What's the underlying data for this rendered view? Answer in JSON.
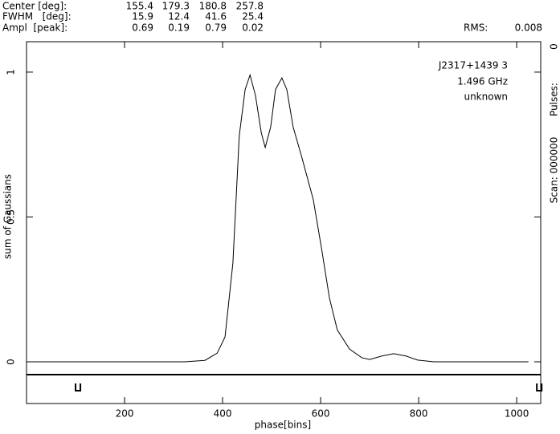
{
  "chart_data": {
    "type": "line",
    "fit_table": {
      "rows": [
        {
          "label": "Center [deg]:",
          "values": [
            155.4,
            179.3,
            180.8,
            257.8
          ]
        },
        {
          "label": "FWHM   [deg]:",
          "values": [
            15.9,
            12.4,
            41.6,
            25.4
          ]
        },
        {
          "label": "Ampl  [peak]:",
          "values": [
            0.69,
            0.19,
            0.79,
            0.02
          ]
        }
      ]
    },
    "rms_label": "RMS:",
    "rms_value": 0.008,
    "annotations": [
      "J2317+1439 3",
      "1.496 GHz",
      "unknown"
    ],
    "side_labels": [
      "Scan: 000000",
      "Pulses:",
      "0"
    ],
    "xlabel": "phase[bins]",
    "ylabel": "sum of Gaussians",
    "x": [
      0,
      323,
      364,
      389,
      405,
      421,
      434,
      446,
      456,
      467,
      479,
      487,
      498,
      508,
      521,
      531,
      544,
      561,
      585,
      602,
      618,
      634,
      659,
      684,
      700,
      725,
      749,
      774,
      798,
      831,
      1024
    ],
    "series": [
      {
        "name": "sum of Gaussians",
        "color": "#000000",
        "values": [
          0,
          0,
          0.005,
          0.03,
          0.086,
          0.34,
          0.78,
          0.94,
          0.99,
          0.92,
          0.79,
          0.74,
          0.81,
          0.94,
          0.98,
          0.94,
          0.81,
          0.71,
          0.56,
          0.39,
          0.22,
          0.11,
          0.044,
          0.014,
          0.008,
          0.02,
          0.028,
          0.02,
          0.006,
          0,
          0
        ]
      }
    ],
    "baseline_markers_x": [
      105,
      1046
    ],
    "xlim": [
      0,
      1049
    ],
    "ylim": [
      -0.144,
      1.105
    ],
    "xticks": [
      200,
      400,
      600,
      800,
      1000
    ],
    "yticks": [
      0,
      0.5,
      1
    ]
  }
}
